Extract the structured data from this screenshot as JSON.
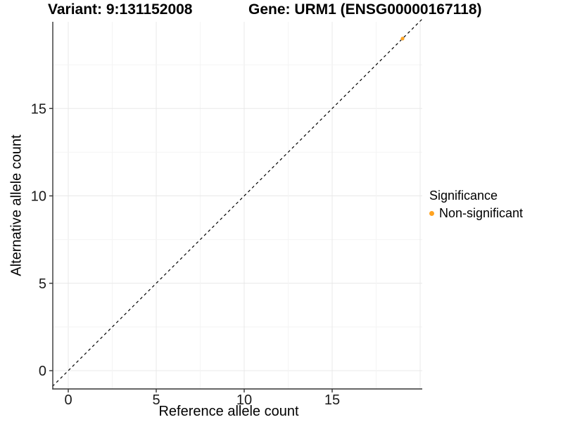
{
  "titles": {
    "variant": "Variant: 9:131152008",
    "gene": "Gene: URM1 (ENSG00000167118)"
  },
  "axes": {
    "x_label": "Reference allele count",
    "y_label": "Alternative allele count"
  },
  "legend": {
    "title": "Significance",
    "items": [
      {
        "label": "Non-significant",
        "color": "#FFA321"
      }
    ]
  },
  "colors": {
    "point": "#FFA321",
    "axis_line": "#333333",
    "tick_label": "#1a1a1a",
    "grid_major": "#e8e8e8",
    "grid_minor": "#f4f4f4",
    "reference_line": "#000000",
    "background": "#ffffff"
  },
  "chart_data": {
    "type": "scatter",
    "title": "Variant: 9:131152008  /  Gene: URM1 (ENSG00000167118)",
    "xlabel": "Reference allele count",
    "ylabel": "Alternative allele count",
    "xlim": [
      -0.9,
      20.1
    ],
    "ylim": [
      -1.0,
      20.0
    ],
    "x_ticks": [
      0,
      5,
      10,
      15
    ],
    "y_ticks": [
      0,
      5,
      10,
      15
    ],
    "grid_step": 2.5,
    "grid": "on",
    "legend_position": "right",
    "series": [
      {
        "name": "Non-significant",
        "color": "#FFA321",
        "points": [
          {
            "x": 19,
            "y": 19
          }
        ]
      }
    ],
    "reference_line": {
      "type": "identity",
      "equation": "y = x",
      "style": "dashed",
      "color": "#000000"
    }
  }
}
